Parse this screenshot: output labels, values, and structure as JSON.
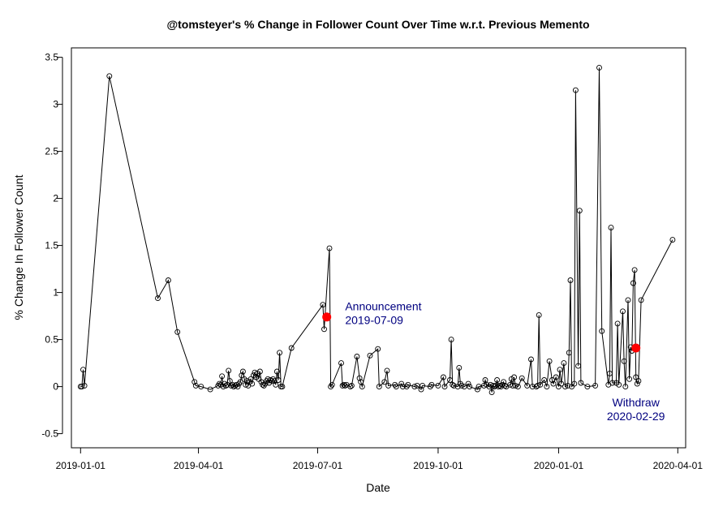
{
  "chart_data": {
    "type": "scatter",
    "title": "@tomsteyer's % Change in Follower Count Over Time w.r.t. Previous Memento",
    "xlabel": "Date",
    "ylabel": "% Change In Follower Count",
    "xlim": [
      "2018-12-25",
      "2020-04-07"
    ],
    "ylim": [
      -0.65,
      3.6
    ],
    "x_ticks": [
      "2019-01-01",
      "2019-04-01",
      "2019-07-01",
      "2019-10-01",
      "2020-01-01",
      "2020-04-01"
    ],
    "y_ticks": [
      -0.5,
      0,
      0.5,
      1,
      1.5,
      2,
      2.5,
      3,
      3.5
    ],
    "grid": false,
    "line_color": "#000000",
    "highlight_color": "#ff0000",
    "annotation_color": "#000080",
    "series": [
      {
        "points": [
          [
            "2019-01-01",
            0
          ],
          [
            "2019-01-02",
            0
          ],
          [
            "2019-01-03",
            0.18
          ],
          [
            "2019-01-04",
            0.01
          ],
          [
            "2019-01-23",
            3.3
          ],
          [
            "2019-03-01",
            0.94
          ],
          [
            "2019-03-09",
            1.13
          ],
          [
            "2019-03-16",
            0.58
          ],
          [
            "2019-03-29",
            0.05
          ],
          [
            "2019-03-30",
            0.01
          ],
          [
            "2019-04-03",
            0
          ],
          [
            "2019-04-10",
            -0.03
          ],
          [
            "2019-04-16",
            0.01
          ],
          [
            "2019-04-17",
            0.03
          ],
          [
            "2019-04-18",
            0.02
          ],
          [
            "2019-04-19",
            0.11
          ],
          [
            "2019-04-20",
            0
          ],
          [
            "2019-04-21",
            0.03
          ],
          [
            "2019-04-22",
            0.01
          ],
          [
            "2019-04-23",
            0.02
          ],
          [
            "2019-04-24",
            0.17
          ],
          [
            "2019-04-25",
            0.06
          ],
          [
            "2019-04-26",
            0.01
          ],
          [
            "2019-04-27",
            0.02
          ],
          [
            "2019-04-28",
            0
          ],
          [
            "2019-04-29",
            0.01
          ],
          [
            "2019-04-30",
            0.02
          ],
          [
            "2019-05-01",
            0
          ],
          [
            "2019-05-02",
            0.03
          ],
          [
            "2019-05-03",
            0.05
          ],
          [
            "2019-05-04",
            0.12
          ],
          [
            "2019-05-05",
            0.16
          ],
          [
            "2019-05-06",
            0.08
          ],
          [
            "2019-05-07",
            0.02
          ],
          [
            "2019-05-08",
            0.06
          ],
          [
            "2019-05-09",
            0.01
          ],
          [
            "2019-05-10",
            0.05
          ],
          [
            "2019-05-11",
            0.08
          ],
          [
            "2019-05-12",
            0.03
          ],
          [
            "2019-05-13",
            0.12
          ],
          [
            "2019-05-14",
            0.15
          ],
          [
            "2019-05-15",
            0.1
          ],
          [
            "2019-05-16",
            0.14
          ],
          [
            "2019-05-17",
            0.08
          ],
          [
            "2019-05-18",
            0.16
          ],
          [
            "2019-05-19",
            0.05
          ],
          [
            "2019-05-20",
            0.02
          ],
          [
            "2019-05-21",
            0.01
          ],
          [
            "2019-05-22",
            0.03
          ],
          [
            "2019-05-23",
            0.06
          ],
          [
            "2019-05-24",
            0.08
          ],
          [
            "2019-05-25",
            0.04
          ],
          [
            "2019-05-26",
            0.07
          ],
          [
            "2019-05-27",
            0.06
          ],
          [
            "2019-05-28",
            0.08
          ],
          [
            "2019-05-29",
            0.06
          ],
          [
            "2019-05-30",
            0.02
          ],
          [
            "2019-05-31",
            0.16
          ],
          [
            "2019-06-01",
            0.07
          ],
          [
            "2019-06-02",
            0.36
          ],
          [
            "2019-06-03",
            0
          ],
          [
            "2019-06-04",
            0
          ],
          [
            "2019-06-11",
            0.41
          ],
          [
            "2019-07-05",
            0.87
          ],
          [
            "2019-07-06",
            0.61
          ],
          [
            "2019-07-10",
            1.47
          ],
          [
            "2019-07-11",
            0
          ],
          [
            "2019-07-12",
            0.02
          ],
          [
            "2019-07-19",
            0.25
          ],
          [
            "2019-07-20",
            0.01
          ],
          [
            "2019-07-21",
            0.02
          ],
          [
            "2019-07-22",
            0.01
          ],
          [
            "2019-07-23",
            0.02
          ],
          [
            "2019-07-26",
            0
          ],
          [
            "2019-07-27",
            0.01
          ],
          [
            "2019-07-31",
            0.32
          ],
          [
            "2019-08-02",
            0.09
          ],
          [
            "2019-08-03",
            0.05
          ],
          [
            "2019-08-04",
            0
          ],
          [
            "2019-08-10",
            0.33
          ],
          [
            "2019-08-16",
            0.4
          ],
          [
            "2019-08-17",
            0
          ],
          [
            "2019-08-21",
            0.05
          ],
          [
            "2019-08-23",
            0.17
          ],
          [
            "2019-08-24",
            0.01
          ],
          [
            "2019-08-29",
            0.02
          ],
          [
            "2019-08-30",
            0
          ],
          [
            "2019-09-03",
            0.03
          ],
          [
            "2019-09-04",
            0
          ],
          [
            "2019-09-07",
            0
          ],
          [
            "2019-09-08",
            0.02
          ],
          [
            "2019-09-13",
            0
          ],
          [
            "2019-09-15",
            0.01
          ],
          [
            "2019-09-18",
            -0.03
          ],
          [
            "2019-09-19",
            0.01
          ],
          [
            "2019-09-25",
            0
          ],
          [
            "2019-09-26",
            0.02
          ],
          [
            "2019-10-01",
            0.01
          ],
          [
            "2019-10-05",
            0.1
          ],
          [
            "2019-10-06",
            0
          ],
          [
            "2019-10-10",
            0.07
          ],
          [
            "2019-10-11",
            0.5
          ],
          [
            "2019-10-12",
            0.02
          ],
          [
            "2019-10-13",
            0.01
          ],
          [
            "2019-10-16",
            0
          ],
          [
            "2019-10-17",
            0.2
          ],
          [
            "2019-10-18",
            0.03
          ],
          [
            "2019-10-19",
            0.01
          ],
          [
            "2019-10-21",
            0
          ],
          [
            "2019-10-24",
            0.03
          ],
          [
            "2019-10-25",
            0
          ],
          [
            "2019-10-31",
            -0.03
          ],
          [
            "2019-11-01",
            0
          ],
          [
            "2019-11-05",
            0.01
          ],
          [
            "2019-11-06",
            0.07
          ],
          [
            "2019-11-07",
            0.02
          ],
          [
            "2019-11-09",
            0
          ],
          [
            "2019-11-10",
            0.02
          ],
          [
            "2019-11-11",
            -0.06
          ],
          [
            "2019-11-12",
            0.01
          ],
          [
            "2019-11-13",
            0
          ],
          [
            "2019-11-14",
            0.01
          ],
          [
            "2019-11-15",
            0.07
          ],
          [
            "2019-11-16",
            0
          ],
          [
            "2019-11-17",
            0.01
          ],
          [
            "2019-11-18",
            0
          ],
          [
            "2019-11-19",
            0.02
          ],
          [
            "2019-11-20",
            0.05
          ],
          [
            "2019-11-21",
            0.01
          ],
          [
            "2019-11-22",
            0
          ],
          [
            "2019-11-25",
            0.02
          ],
          [
            "2019-11-26",
            0.08
          ],
          [
            "2019-11-27",
            0.01
          ],
          [
            "2019-11-28",
            0.1
          ],
          [
            "2019-11-29",
            0.01
          ],
          [
            "2019-12-01",
            0
          ],
          [
            "2019-12-04",
            0.09
          ],
          [
            "2019-12-08",
            0.01
          ],
          [
            "2019-12-11",
            0.29
          ],
          [
            "2019-12-12",
            0
          ],
          [
            "2019-12-15",
            0
          ],
          [
            "2019-12-16",
            0.01
          ],
          [
            "2019-12-17",
            0.76
          ],
          [
            "2019-12-18",
            0.02
          ],
          [
            "2019-12-21",
            0.07
          ],
          [
            "2019-12-23",
            0
          ],
          [
            "2019-12-25",
            0.27
          ],
          [
            "2019-12-27",
            0.07
          ],
          [
            "2019-12-28",
            0.03
          ],
          [
            "2019-12-30",
            0.1
          ],
          [
            "2020-01-01",
            0
          ],
          [
            "2020-01-02",
            0.18
          ],
          [
            "2020-01-03",
            0.03
          ],
          [
            "2020-01-05",
            0.25
          ],
          [
            "2020-01-06",
            0
          ],
          [
            "2020-01-08",
            0.01
          ],
          [
            "2020-01-09",
            0.36
          ],
          [
            "2020-01-10",
            1.13
          ],
          [
            "2020-01-11",
            0
          ],
          [
            "2020-01-13",
            0.03
          ],
          [
            "2020-01-14",
            3.15
          ],
          [
            "2020-01-16",
            0.22
          ],
          [
            "2020-01-17",
            1.87
          ],
          [
            "2020-01-18",
            0.04
          ],
          [
            "2020-01-23",
            0
          ],
          [
            "2020-01-29",
            0.01
          ],
          [
            "2020-02-01",
            3.39
          ],
          [
            "2020-02-03",
            0.59
          ],
          [
            "2020-02-08",
            0.02
          ],
          [
            "2020-02-09",
            0.14
          ],
          [
            "2020-02-10",
            1.69
          ],
          [
            "2020-02-11",
            0.04
          ],
          [
            "2020-02-14",
            0.04
          ],
          [
            "2020-02-15",
            0.67
          ],
          [
            "2020-02-16",
            0.02
          ],
          [
            "2020-02-19",
            0.8
          ],
          [
            "2020-02-20",
            0.27
          ],
          [
            "2020-02-21",
            0
          ],
          [
            "2020-02-23",
            0.92
          ],
          [
            "2020-02-24",
            0.08
          ],
          [
            "2020-02-25",
            0.42
          ],
          [
            "2020-02-26",
            0.38
          ],
          [
            "2020-02-27",
            1.1
          ],
          [
            "2020-02-28",
            1.24
          ],
          [
            "2020-02-29",
            0.1
          ],
          [
            "2020-03-01",
            0.03
          ],
          [
            "2020-03-02",
            0.06
          ],
          [
            "2020-03-04",
            0.92
          ],
          [
            "2020-03-28",
            1.56
          ]
        ]
      }
    ],
    "highlights": [
      {
        "x": "2019-07-08",
        "y": 0.74
      },
      {
        "x": "2020-02-29",
        "y": 0.41
      }
    ],
    "annotations": [
      {
        "lines": [
          "Announcement",
          "2019-07-09"
        ],
        "x": "2019-07-22",
        "y": 0.81,
        "align": "start"
      },
      {
        "lines": [
          "Withdraw",
          "2020-02-29"
        ],
        "x": "2020-02-29",
        "y": -0.21,
        "align": "middle"
      }
    ]
  }
}
